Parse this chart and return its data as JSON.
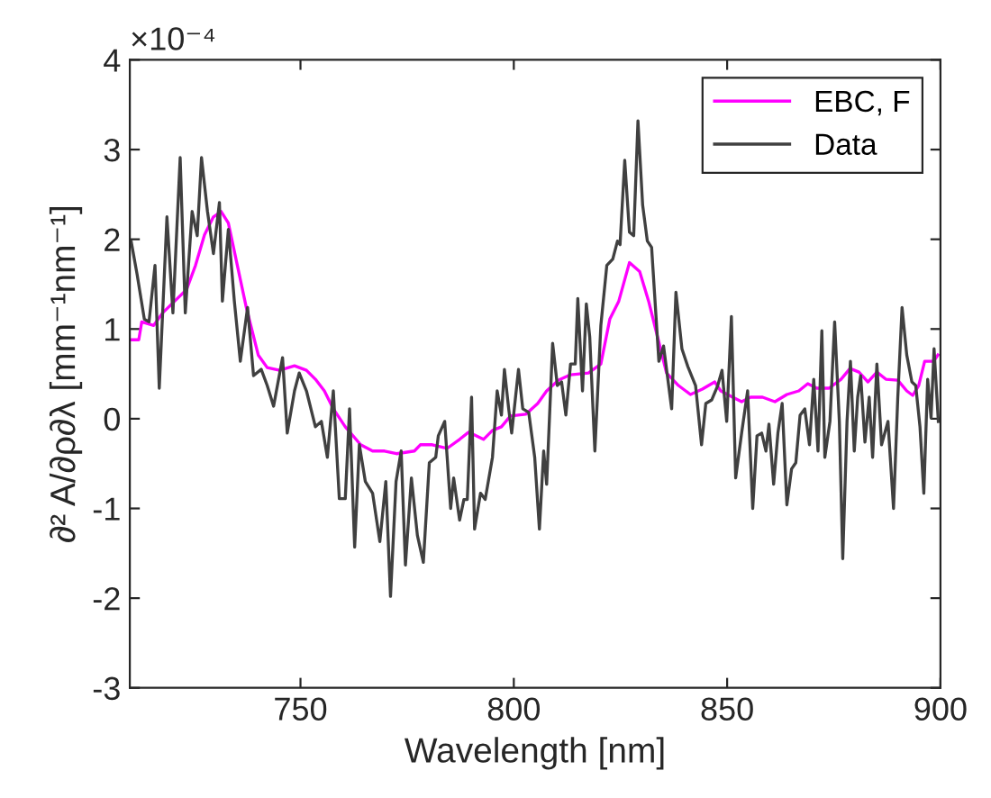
{
  "chart_data": {
    "type": "line",
    "xlabel": "Wavelength [nm]",
    "ylabel": "∂² A/∂ρ∂λ [mm⁻¹nm⁻¹]",
    "annotations": [
      "×10⁻⁴"
    ],
    "xlim": [
      710,
      900
    ],
    "xticks": [
      750,
      800,
      850,
      900
    ],
    "ylim": [
      -3,
      4
    ],
    "yticks": [
      -3,
      -2,
      -1,
      0,
      1,
      2,
      3,
      4
    ],
    "grid": false,
    "legend": "top right",
    "marker": "none",
    "line_style": "solid",
    "series": [
      {
        "name": "EBC, F",
        "color": "#ff00ff",
        "x": [
          710.3,
          712.1,
          712.8,
          715.6,
          717.7,
          720.5,
          723.3,
          725.4,
          727.5,
          729.6,
          731.4,
          733.1,
          735.2,
          737.3,
          740.1,
          742.2,
          745.1,
          748.6,
          751.4,
          753.5,
          755.6,
          757.7,
          760.5,
          764.1,
          766.9,
          769.7,
          772.5,
          776.7,
          778.1,
          780.9,
          784.4,
          787.3,
          789.4,
          792.9,
          795,
          797.1,
          799.2,
          802.8,
          805.6,
          807.7,
          810.5,
          813.3,
          817.5,
          820.4,
          822.5,
          824.6,
          827.1,
          829.5,
          831.6,
          833.7,
          835.8,
          838.6,
          841.4,
          844.2,
          847.1,
          848.5,
          851.3,
          853.4,
          855.5,
          858.3,
          861.2,
          864,
          866.8,
          868.9,
          871,
          873.9,
          876.7,
          878.8,
          880.9,
          883,
          885.1,
          887.2,
          890,
          892.1,
          893.5,
          894.9,
          896.3,
          898.4,
          899.4
        ],
        "values": [
          0.88,
          0.88,
          1.08,
          1.04,
          1.18,
          1.31,
          1.44,
          1.71,
          2.05,
          2.25,
          2.31,
          2.18,
          1.71,
          1.24,
          0.71,
          0.57,
          0.54,
          0.59,
          0.54,
          0.44,
          0.31,
          0.11,
          -0.09,
          -0.29,
          -0.36,
          -0.36,
          -0.39,
          -0.36,
          -0.29,
          -0.29,
          -0.33,
          -0.23,
          -0.15,
          -0.23,
          -0.13,
          -0.09,
          0.03,
          0.05,
          0.17,
          0.31,
          0.43,
          0.49,
          0.51,
          0.61,
          1.11,
          1.31,
          1.74,
          1.64,
          1.31,
          0.91,
          0.51,
          0.37,
          0.27,
          0.33,
          0.41,
          0.31,
          0.24,
          0.19,
          0.24,
          0.24,
          0.19,
          0.27,
          0.31,
          0.39,
          0.34,
          0.34,
          0.44,
          0.56,
          0.52,
          0.41,
          0.52,
          0.44,
          0.43,
          0.31,
          0.26,
          0.37,
          0.64,
          0.64,
          0.71
        ]
      },
      {
        "name": "Data",
        "color": "#404040",
        "x": [
          710.3,
          711.7,
          713.4,
          714.5,
          715.9,
          716.9,
          718.7,
          720.1,
          721.8,
          723,
          724.6,
          725.8,
          726.8,
          728.2,
          729.6,
          731,
          731.7,
          733.1,
          734.5,
          735.9,
          737.6,
          739,
          740.8,
          742.2,
          743.7,
          745.8,
          746.9,
          748.6,
          749.7,
          751.4,
          753.5,
          754.9,
          756.3,
          757.7,
          759.1,
          760.5,
          761.5,
          762.7,
          763.8,
          765.2,
          766.9,
          768.6,
          770,
          771.1,
          772.4,
          773.6,
          774.6,
          776,
          777.4,
          778.8,
          780.2,
          781.7,
          782.3,
          783.8,
          785.2,
          785.9,
          787.3,
          788.3,
          789.1,
          790.1,
          790.8,
          792.2,
          793.3,
          795,
          796.1,
          797.1,
          797.8,
          798.8,
          799.5,
          801.1,
          802.1,
          803.5,
          804.9,
          806,
          807,
          807.7,
          809.1,
          810.2,
          811.2,
          812.2,
          813.3,
          814.4,
          815,
          816.1,
          817,
          817.8,
          819,
          820.4,
          821.8,
          823.2,
          824.3,
          824.9,
          826,
          827.1,
          828.1,
          829.1,
          830.2,
          831.3,
          832.3,
          834,
          835.1,
          837,
          838,
          839.4,
          840.8,
          842.6,
          844,
          845,
          846.4,
          847.8,
          848.8,
          849.9,
          851,
          852,
          853.4,
          854.8,
          856,
          857,
          858.1,
          859.1,
          859.8,
          860.9,
          861.9,
          862.9,
          864,
          865.1,
          866.1,
          867.1,
          868.2,
          869.3,
          870.3,
          871.3,
          872.2,
          872.9,
          874.1,
          875.2,
          876.3,
          877.1,
          878.1,
          878.9,
          879.8,
          880.6,
          881.3,
          882.3,
          883.3,
          884.1,
          885.1,
          886.2,
          887.7,
          889,
          890,
          891,
          892.1,
          893.3,
          894.2,
          895.2,
          896.1,
          897,
          897.8,
          898.5,
          899.5
        ],
        "values": [
          1.98,
          1.61,
          1.11,
          1.08,
          1.71,
          0.34,
          2.25,
          1.18,
          2.91,
          1.18,
          2.31,
          2.04,
          2.91,
          2.31,
          1.84,
          2.41,
          1.31,
          2.11,
          1.31,
          0.64,
          1.24,
          0.48,
          0.55,
          0.37,
          0.14,
          0.68,
          -0.16,
          0.31,
          0.51,
          0.31,
          -0.09,
          -0.03,
          -0.43,
          0.31,
          -0.89,
          -0.89,
          0.11,
          -1.43,
          -0.29,
          -0.7,
          -0.83,
          -1.37,
          -0.7,
          -1.98,
          -0.7,
          -0.36,
          -1.63,
          -0.66,
          -1.3,
          -1.6,
          -0.49,
          -0.43,
          -0.19,
          -0.03,
          -1.0,
          -0.66,
          -1.13,
          -0.9,
          -0.9,
          0.24,
          -1.23,
          -0.83,
          -0.9,
          -0.43,
          0.31,
          0.04,
          0.55,
          0.11,
          -0.16,
          0.55,
          0.11,
          0.07,
          -0.43,
          -1.23,
          -0.36,
          -0.73,
          0.84,
          0.37,
          0.41,
          0.04,
          0.61,
          0.61,
          1.34,
          0.31,
          1.28,
          0.91,
          -0.36,
          1.04,
          1.71,
          1.78,
          1.98,
          1.94,
          2.88,
          2.08,
          2.04,
          3.32,
          2.38,
          1.98,
          1.91,
          0.64,
          0.81,
          0.11,
          1.41,
          0.78,
          0.58,
          0.37,
          -0.29,
          0.17,
          0.21,
          0.37,
          0.54,
          -0.03,
          1.14,
          -0.66,
          -0.16,
          0.31,
          -1.0,
          -0.19,
          -0.16,
          -0.36,
          -0.06,
          -0.73,
          -0.16,
          0.17,
          -0.96,
          -0.56,
          -0.49,
          0.04,
          0.11,
          -0.29,
          0.44,
          -0.36,
          0.98,
          -0.43,
          -0.03,
          1.08,
          -0.03,
          -1.56,
          -0.03,
          0.64,
          -0.36,
          0.24,
          0.48,
          -0.26,
          0.24,
          -0.43,
          0.61,
          -0.29,
          -0.03,
          -1.0,
          0.24,
          1.24,
          0.71,
          0.41,
          0.37,
          -0.09,
          -0.83,
          0.44,
          0.01,
          0.78,
          -0.03
        ]
      }
    ]
  }
}
